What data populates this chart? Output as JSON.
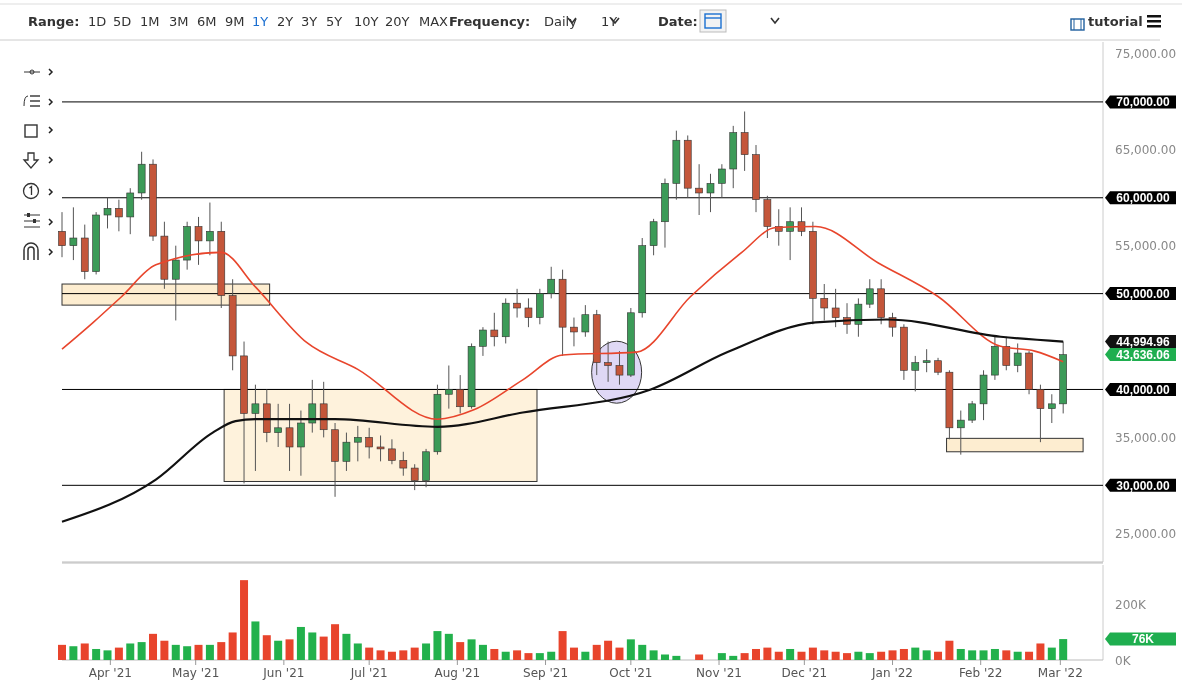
{
  "chart_data": [
    {
      "type": "candlestick",
      "tick_labels": "y",
      "grid": false,
      "xlim": [
        "2021-03-15",
        "2022-03-16"
      ],
      "ylim": [
        22000,
        76250
      ],
      "yticks": [
        {
          "value": 25000,
          "label": "25,000.00"
        },
        {
          "value": 35000,
          "label": "35,000.00"
        },
        {
          "value": 55000,
          "label": "55,000.00"
        },
        {
          "value": 65000,
          "label": "65,000.00"
        },
        {
          "value": 75000,
          "label": "75,000.00"
        }
      ],
      "x": [
        "2021-03-15",
        "2021-03-19",
        "2021-03-23",
        "2021-03-27",
        "2021-03-31",
        "2021-04-04",
        "2021-04-08",
        "2021-04-12",
        "2021-04-16",
        "2021-04-20",
        "2021-04-24",
        "2021-04-28",
        "2021-05-02",
        "2021-05-06",
        "2021-05-10",
        "2021-05-14",
        "2021-05-18",
        "2021-05-22",
        "2021-05-26",
        "2021-05-30",
        "2021-06-03",
        "2021-06-07",
        "2021-06-11",
        "2021-06-15",
        "2021-06-19",
        "2021-06-23",
        "2021-06-27",
        "2021-07-01",
        "2021-07-05",
        "2021-07-09",
        "2021-07-13",
        "2021-07-17",
        "2021-07-21",
        "2021-07-25",
        "2021-07-29",
        "2021-08-02",
        "2021-08-06",
        "2021-08-10",
        "2021-08-14",
        "2021-08-18",
        "2021-08-22",
        "2021-08-26",
        "2021-08-30",
        "2021-09-03",
        "2021-09-07",
        "2021-09-11",
        "2021-09-15",
        "2021-09-19",
        "2021-09-23",
        "2021-09-27",
        "2021-10-01",
        "2021-10-05",
        "2021-10-09",
        "2021-10-13",
        "2021-10-17",
        "2021-10-21",
        "2021-10-25",
        "2021-10-29",
        "2021-11-02",
        "2021-11-06",
        "2021-11-10",
        "2021-11-14",
        "2021-11-18",
        "2021-11-22",
        "2021-11-26",
        "2021-11-30",
        "2021-12-04",
        "2021-12-08",
        "2021-12-12",
        "2021-12-16",
        "2021-12-20",
        "2021-12-24",
        "2021-12-28",
        "2022-01-01",
        "2022-01-05",
        "2022-01-09",
        "2022-01-13",
        "2022-01-17",
        "2022-01-21",
        "2022-01-25",
        "2022-01-29",
        "2022-02-02",
        "2022-02-06",
        "2022-02-10",
        "2022-02-14",
        "2022-02-18",
        "2022-02-22",
        "2022-02-26",
        "2022-03-02"
      ],
      "ohlc": [
        [
          56500,
          58500,
          53800,
          55000
        ],
        [
          55000,
          59000,
          53500,
          55800
        ],
        [
          55800,
          57200,
          51500,
          52300
        ],
        [
          52300,
          58500,
          52000,
          58200
        ],
        [
          58200,
          60000,
          56800,
          58900
        ],
        [
          58900,
          59800,
          56500,
          58000
        ],
        [
          58000,
          61000,
          56200,
          60500
        ],
        [
          60500,
          64800,
          59800,
          63500
        ],
        [
          63500,
          64000,
          55500,
          56000
        ],
        [
          56000,
          57500,
          50500,
          51500
        ],
        [
          51500,
          55000,
          47200,
          53500
        ],
        [
          53500,
          57500,
          52500,
          57000
        ],
        [
          57000,
          58000,
          53000,
          55500
        ],
        [
          55500,
          59500,
          54000,
          56500
        ],
        [
          56500,
          57500,
          48500,
          49800
        ],
        [
          49800,
          51500,
          42000,
          43500
        ],
        [
          43500,
          45000,
          30200,
          37500
        ],
        [
          37500,
          40500,
          31500,
          38500
        ],
        [
          38500,
          40000,
          34500,
          35500
        ],
        [
          35500,
          38500,
          34000,
          36000
        ],
        [
          36000,
          38500,
          31500,
          34000
        ],
        [
          34000,
          37800,
          31000,
          36500
        ],
        [
          36500,
          41000,
          35500,
          38500
        ],
        [
          38500,
          40800,
          35000,
          35800
        ],
        [
          35800,
          36500,
          28800,
          32500
        ],
        [
          32500,
          35500,
          31500,
          34500
        ],
        [
          34500,
          36200,
          32500,
          35000
        ],
        [
          35000,
          36000,
          32800,
          34000
        ],
        [
          34000,
          35200,
          32500,
          33800
        ],
        [
          33800,
          34800,
          32200,
          32600
        ],
        [
          32600,
          33500,
          31000,
          31800
        ],
        [
          31800,
          32200,
          29500,
          30500
        ],
        [
          30500,
          33800,
          29800,
          33500
        ],
        [
          33500,
          40500,
          33200,
          39500
        ],
        [
          39500,
          42500,
          38000,
          40000
        ],
        [
          40000,
          41500,
          37500,
          38200
        ],
        [
          38200,
          44800,
          38000,
          44500
        ],
        [
          44500,
          46500,
          43500,
          46200
        ],
        [
          46200,
          48000,
          44500,
          45500
        ],
        [
          45500,
          49500,
          44800,
          49000
        ],
        [
          49000,
          50500,
          47500,
          48500
        ],
        [
          48500,
          49500,
          46500,
          47500
        ],
        [
          47500,
          50500,
          46800,
          50000
        ],
        [
          50000,
          52800,
          49500,
          51500
        ],
        [
          51500,
          52500,
          43500,
          46500
        ],
        [
          46500,
          47500,
          44500,
          46000
        ],
        [
          46000,
          48800,
          45500,
          47800
        ],
        [
          47800,
          48300,
          41500,
          42800
        ],
        [
          42800,
          45000,
          40800,
          42500
        ],
        [
          42500,
          44000,
          40500,
          41500
        ],
        [
          41500,
          48500,
          41300,
          48000
        ],
        [
          48000,
          55800,
          47500,
          55000
        ],
        [
          55000,
          57800,
          54000,
          57500
        ],
        [
          57500,
          62000,
          54800,
          61500
        ],
        [
          61500,
          67000,
          59800,
          66000
        ],
        [
          66000,
          66500,
          60000,
          61000
        ],
        [
          61000,
          63500,
          58200,
          60500
        ],
        [
          60500,
          62500,
          58500,
          61500
        ],
        [
          61500,
          63500,
          60000,
          63000
        ],
        [
          63000,
          67500,
          61000,
          66800
        ],
        [
          66800,
          69000,
          62800,
          64500
        ],
        [
          64500,
          65500,
          58500,
          59800
        ],
        [
          59800,
          60200,
          55800,
          57000
        ],
        [
          57000,
          58800,
          55000,
          56500
        ],
        [
          56500,
          59000,
          53500,
          57500
        ],
        [
          57500,
          59000,
          56000,
          56500
        ],
        [
          56500,
          57500,
          46800,
          49500
        ],
        [
          49500,
          51000,
          47200,
          48500
        ],
        [
          48500,
          50500,
          46500,
          47500
        ],
        [
          47500,
          49000,
          45800,
          46800
        ],
        [
          46800,
          49500,
          45500,
          48900
        ],
        [
          48900,
          51500,
          48500,
          50500
        ],
        [
          50500,
          51500,
          46800,
          47500
        ],
        [
          47500,
          48000,
          45500,
          46500
        ],
        [
          46500,
          46800,
          41000,
          42000
        ],
        [
          42000,
          43500,
          39800,
          42800
        ],
        [
          42800,
          44200,
          41800,
          43000
        ],
        [
          43000,
          43300,
          41500,
          41800
        ],
        [
          41800,
          42000,
          34800,
          36000
        ],
        [
          36000,
          37800,
          33200,
          36800
        ],
        [
          36800,
          38800,
          36500,
          38500
        ],
        [
          38500,
          42000,
          36800,
          41500
        ],
        [
          41500,
          45500,
          41000,
          44500
        ],
        [
          44500,
          45500,
          42000,
          42500
        ],
        [
          42500,
          44800,
          41800,
          43800
        ],
        [
          43800,
          44000,
          39500,
          40000
        ],
        [
          40000,
          40500,
          34500,
          38000
        ],
        [
          38000,
          39500,
          36500,
          38500
        ],
        [
          38500,
          45000,
          37500,
          43636.06
        ]
      ],
      "colors": [
        "#c4563a",
        "#3c9b58",
        "#c4563a",
        "#3c9b58",
        "#3c9b58",
        "#c4563a",
        "#3c9b58",
        "#3c9b58",
        "#c4563a",
        "#c4563a",
        "#3c9b58",
        "#3c9b58",
        "#c4563a",
        "#3c9b58",
        "#c4563a",
        "#c4563a",
        "#c4563a",
        "#3c9b58",
        "#c4563a",
        "#3c9b58",
        "#c4563a",
        "#3c9b58",
        "#3c9b58",
        "#c4563a",
        "#c4563a",
        "#3c9b58",
        "#3c9b58",
        "#c4563a",
        "#c4563a",
        "#c4563a",
        "#c4563a",
        "#c4563a",
        "#3c9b58",
        "#3c9b58",
        "#3c9b58",
        "#c4563a",
        "#3c9b58",
        "#3c9b58",
        "#c4563a",
        "#3c9b58",
        "#c4563a",
        "#c4563a",
        "#3c9b58",
        "#3c9b58",
        "#c4563a",
        "#c4563a",
        "#3c9b58",
        "#c4563a",
        "#c4563a",
        "#c4563a",
        "#3c9b58",
        "#3c9b58",
        "#3c9b58",
        "#3c9b58",
        "#3c9b58",
        "#c4563a",
        "#c4563a",
        "#3c9b58",
        "#3c9b58",
        "#3c9b58",
        "#c4563a",
        "#c4563a",
        "#c4563a",
        "#c4563a",
        "#3c9b58",
        "#c4563a",
        "#c4563a",
        "#c4563a",
        "#c4563a",
        "#c4563a",
        "#3c9b58",
        "#3c9b58",
        "#c4563a",
        "#c4563a",
        "#c4563a",
        "#3c9b58",
        "#3c9b58",
        "#c4563a",
        "#c4563a",
        "#3c9b58",
        "#3c9b58",
        "#3c9b58",
        "#3c9b58",
        "#c4563a",
        "#3c9b58",
        "#c4563a",
        "#c4563a",
        "#3c9b58",
        "#3c9b58"
      ],
      "series": [
        {
          "type": "line",
          "color": "#e8452c",
          "x": [
            "2021-03-15",
            "2021-03-26",
            "2021-04-05",
            "2021-04-17",
            "2021-05-10",
            "2021-05-22",
            "2021-06-09",
            "2021-06-27",
            "2021-07-25",
            "2021-08-07",
            "2021-08-24",
            "2021-09-07",
            "2021-10-03",
            "2021-10-22",
            "2021-11-09",
            "2021-11-21",
            "2021-12-05",
            "2021-12-27",
            "2022-01-17",
            "2022-02-08",
            "2022-02-20",
            "2022-03-02"
          ],
          "values": [
            44200,
            47000,
            49700,
            53000,
            54300,
            50700,
            44900,
            42100,
            36900,
            37900,
            41000,
            43600,
            43900,
            49700,
            54300,
            56900,
            57000,
            53200,
            49700,
            44500,
            44000,
            42900
          ]
        },
        {
          "type": "line",
          "color": "#111111",
          "x": [
            "2021-03-15",
            "2021-04-17",
            "2021-05-07",
            "2021-05-15",
            "2021-05-22",
            "2021-06-19",
            "2021-07-25",
            "2021-08-24",
            "2021-10-08",
            "2021-11-04",
            "2021-12-05",
            "2021-12-30",
            "2022-02-08",
            "2022-03-02"
          ],
          "values": [
            26200,
            30600,
            35500,
            36700,
            36900,
            36900,
            36100,
            37600,
            40000,
            43900,
            47000,
            47300,
            45500,
            45000
          ]
        }
      ],
      "ref_lines": [
        {
          "axis": "y",
          "value": 70000,
          "label": "70,000.00",
          "color": "#000000"
        },
        {
          "axis": "y",
          "value": 60000,
          "label": "60,000.00",
          "color": "#000000"
        },
        {
          "axis": "y",
          "value": 50000,
          "label": "50,000.00",
          "color": "#000000"
        },
        {
          "axis": "y",
          "value": 40000,
          "label": "40,000.00",
          "color": "#000000"
        },
        {
          "axis": "y",
          "value": 30000,
          "label": "30,000.00",
          "color": "#000000"
        }
      ],
      "annotations": [
        "Range:",
        "1D",
        "5D",
        "1M",
        "3M",
        "6M",
        "9M",
        "1Y",
        "2Y",
        "3Y",
        "5Y",
        "10Y",
        "20Y",
        "MAX",
        "Frequency:",
        "Daily",
        "1Y",
        "Date:",
        "tutorial",
        "44,994.96",
        "43,636.06"
      ]
    },
    {
      "type": "bar",
      "grid": false,
      "xlim": [
        "2021-03-15",
        "2022-03-16"
      ],
      "ylim": [
        0,
        345000
      ],
      "yticks": [
        {
          "value": 0,
          "label": "0K"
        },
        {
          "value": 200000,
          "label": "200K"
        }
      ],
      "xticks": [
        {
          "value": "2021-04-01",
          "label": "Apr '21"
        },
        {
          "value": "2021-05-01",
          "label": "May '21"
        },
        {
          "value": "2021-06-01",
          "label": "Jun '21"
        },
        {
          "value": "2021-07-01",
          "label": "Jul '21"
        },
        {
          "value": "2021-08-01",
          "label": "Aug '21"
        },
        {
          "value": "2021-09-01",
          "label": "Sep '21"
        },
        {
          "value": "2021-10-01",
          "label": "Oct '21"
        },
        {
          "value": "2021-11-01",
          "label": "Nov '21"
        },
        {
          "value": "2021-12-01",
          "label": "Dec '21"
        },
        {
          "value": "2022-01-01",
          "label": "Jan '22"
        },
        {
          "value": "2022-02-01",
          "label": "Feb '22"
        },
        {
          "value": "2022-03-01",
          "label": "Mar '22"
        }
      ],
      "x": [
        "2021-03-15",
        "2021-03-19",
        "2021-03-23",
        "2021-03-27",
        "2021-03-31",
        "2021-04-04",
        "2021-04-08",
        "2021-04-12",
        "2021-04-16",
        "2021-04-20",
        "2021-04-24",
        "2021-04-28",
        "2021-05-02",
        "2021-05-06",
        "2021-05-10",
        "2021-05-14",
        "2021-05-18",
        "2021-05-22",
        "2021-05-26",
        "2021-05-30",
        "2021-06-03",
        "2021-06-07",
        "2021-06-11",
        "2021-06-15",
        "2021-06-19",
        "2021-06-23",
        "2021-06-27",
        "2021-07-01",
        "2021-07-05",
        "2021-07-09",
        "2021-07-13",
        "2021-07-17",
        "2021-07-21",
        "2021-07-25",
        "2021-07-29",
        "2021-08-02",
        "2021-08-06",
        "2021-08-10",
        "2021-08-14",
        "2021-08-18",
        "2021-08-22",
        "2021-08-26",
        "2021-08-30",
        "2021-09-03",
        "2021-09-07",
        "2021-09-11",
        "2021-09-15",
        "2021-09-19",
        "2021-09-23",
        "2021-09-27",
        "2021-10-01",
        "2021-10-05",
        "2021-10-09",
        "2021-10-13",
        "2021-10-17",
        "2021-10-25",
        "2021-11-02",
        "2021-11-06",
        "2021-11-10",
        "2021-11-14",
        "2021-11-18",
        "2021-11-22",
        "2021-11-26",
        "2021-11-30",
        "2021-12-04",
        "2021-12-08",
        "2021-12-12",
        "2021-12-16",
        "2021-12-20",
        "2021-12-24",
        "2021-12-28",
        "2022-01-01",
        "2022-01-05",
        "2022-01-09",
        "2022-01-13",
        "2022-01-17",
        "2022-01-21",
        "2022-01-25",
        "2022-01-29",
        "2022-02-02",
        "2022-02-06",
        "2022-02-10",
        "2022-02-14",
        "2022-02-18",
        "2022-02-22",
        "2022-02-26",
        "2022-03-02"
      ],
      "values": [
        55000,
        50000,
        60000,
        40000,
        35000,
        45000,
        60000,
        65000,
        95000,
        70000,
        55000,
        50000,
        55000,
        55000,
        65000,
        100000,
        290000,
        140000,
        90000,
        70000,
        75000,
        120000,
        100000,
        85000,
        130000,
        95000,
        60000,
        45000,
        35000,
        30000,
        35000,
        45000,
        60000,
        105000,
        95000,
        65000,
        75000,
        55000,
        40000,
        30000,
        35000,
        25000,
        25000,
        30000,
        105000,
        45000,
        30000,
        55000,
        70000,
        45000,
        75000,
        55000,
        35000,
        20000,
        15000,
        20000,
        25000,
        15000,
        25000,
        40000,
        45000,
        30000,
        40000,
        30000,
        45000,
        35000,
        30000,
        25000,
        30000,
        25000,
        30000,
        35000,
        40000,
        45000,
        35000,
        30000,
        70000,
        40000,
        35000,
        35000,
        40000,
        35000,
        30000,
        30000,
        60000,
        45000,
        76000
      ],
      "colors": [
        "#e8442c",
        "#22b14c",
        "#e8442c",
        "#22b14c",
        "#22b14c",
        "#e8442c",
        "#22b14c",
        "#22b14c",
        "#e8442c",
        "#e8442c",
        "#22b14c",
        "#22b14c",
        "#e8442c",
        "#22b14c",
        "#e8442c",
        "#e8442c",
        "#e8442c",
        "#22b14c",
        "#e8442c",
        "#22b14c",
        "#e8442c",
        "#22b14c",
        "#22b14c",
        "#e8442c",
        "#e8442c",
        "#22b14c",
        "#22b14c",
        "#e8442c",
        "#e8442c",
        "#e8442c",
        "#e8442c",
        "#e8442c",
        "#22b14c",
        "#22b14c",
        "#22b14c",
        "#e8442c",
        "#22b14c",
        "#22b14c",
        "#e8442c",
        "#22b14c",
        "#e8442c",
        "#e8442c",
        "#22b14c",
        "#22b14c",
        "#e8442c",
        "#e8442c",
        "#22b14c",
        "#e8442c",
        "#e8442c",
        "#e8442c",
        "#22b14c",
        "#22b14c",
        "#22b14c",
        "#22b14c",
        "#22b14c",
        "#e8442c",
        "#22b14c",
        "#22b14c",
        "#e8442c",
        "#e8442c",
        "#e8442c",
        "#e8442c",
        "#22b14c",
        "#e8442c",
        "#e8442c",
        "#e8442c",
        "#e8442c",
        "#e8442c",
        "#22b14c",
        "#22b14c",
        "#e8442c",
        "#e8442c",
        "#e8442c",
        "#22b14c",
        "#22b14c",
        "#e8442c",
        "#e8442c",
        "#22b14c",
        "#22b14c",
        "#22b14c",
        "#22b14c",
        "#e8442c",
        "#22b14c",
        "#e8442c",
        "#e8442c",
        "#22b14c",
        "#22b14c"
      ],
      "annotations": [
        "76K"
      ]
    }
  ]
}
